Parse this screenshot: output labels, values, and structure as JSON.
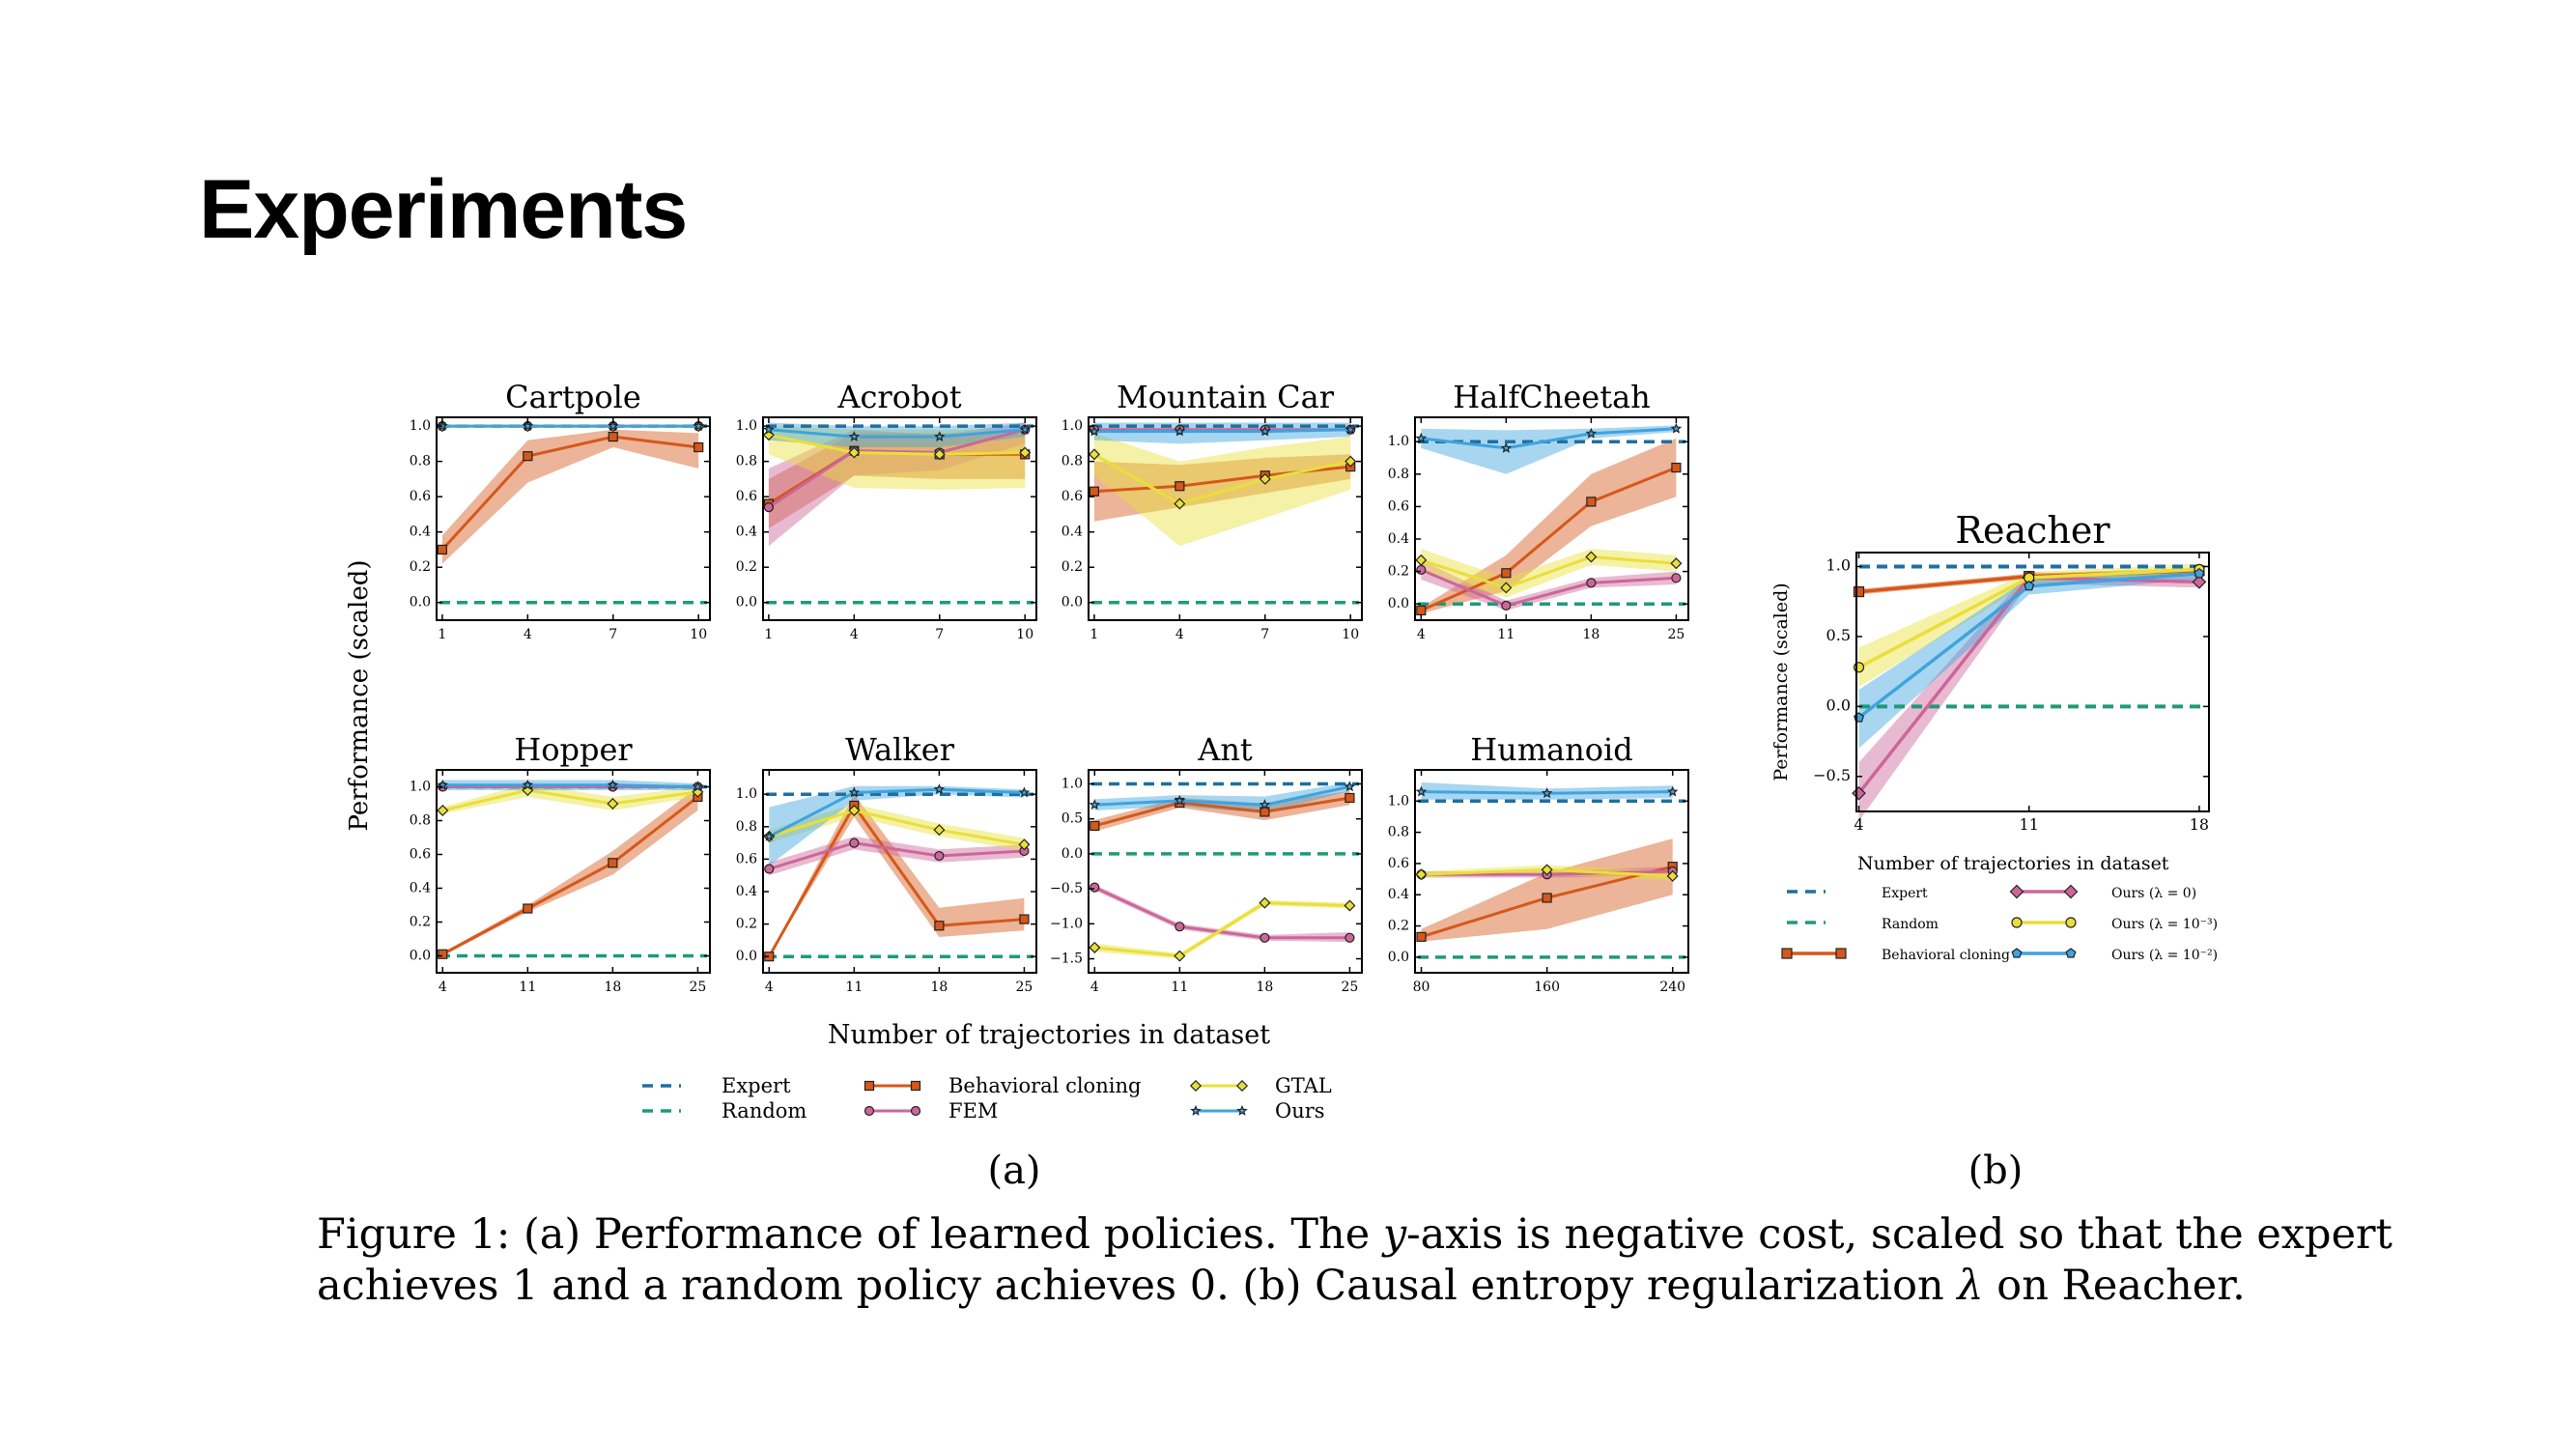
{
  "slide": {
    "title": "Experiments"
  },
  "colors": {
    "expert": "#1f6f9f",
    "random": "#1f9a7a",
    "bc": "#d5581a",
    "fem": "#cc6699",
    "gtal": "#e9df3a",
    "ours": "#3fa3dd"
  },
  "figure": {
    "panel_a_label": "(a)",
    "panel_b_label": "(b)",
    "caption": [
      {
        "t": "Figure 1: (a) Performance of learned policies. The "
      },
      {
        "t": "y",
        "i": true
      },
      {
        "t": "-axis is negative cost, scaled so that the expert"
      }
    ],
    "caption_line2": [
      {
        "t": "achieves 1 and a random policy achieves 0. (b) Causal entropy regularization "
      },
      {
        "t": "λ",
        "i": true
      },
      {
        "t": " on Reacher."
      }
    ]
  },
  "panel_a": {
    "ylabel": "Performance (scaled)",
    "xlabel": "Number of trajectories in dataset",
    "legend": [
      {
        "label": "Expert",
        "key": "expert",
        "style": "dash"
      },
      {
        "label": "Random",
        "key": "random",
        "style": "dash"
      },
      {
        "label": "Behavioral cloning",
        "key": "bc",
        "style": "square"
      },
      {
        "label": "FEM",
        "key": "fem",
        "style": "circle"
      },
      {
        "label": "GTAL",
        "key": "gtal",
        "style": "diamond"
      },
      {
        "label": "Ours",
        "key": "ours",
        "style": "star"
      }
    ]
  },
  "panel_b": {
    "ylabel": "Performance (scaled)",
    "xlabel": "Number of trajectories in dataset",
    "legend": [
      {
        "label": "Expert",
        "key": "expert",
        "style": "dash"
      },
      {
        "label": "Random",
        "key": "random",
        "style": "dash"
      },
      {
        "label": "Behavioral cloning",
        "key": "bc",
        "style": "square"
      },
      {
        "label": "Ours (λ = 0)",
        "key": "fem",
        "style": "bdiamond"
      },
      {
        "label": "Ours (λ = 10⁻³)",
        "key": "gtal",
        "style": "circle"
      },
      {
        "label": "Ours (λ = 10⁻²)",
        "key": "ours",
        "style": "pentagon"
      }
    ]
  },
  "chart_data": [
    {
      "type": "line",
      "title": "Cartpole",
      "x": [
        1,
        4,
        7,
        10
      ],
      "xlim": [
        0.8,
        10.4
      ],
      "ylim": [
        -0.1,
        1.05
      ],
      "yticks": [
        0,
        0.2,
        0.4,
        0.6,
        0.8,
        1.0
      ],
      "series": [
        {
          "name": "Behavioral cloning",
          "values": [
            0.3,
            0.83,
            0.94,
            0.88
          ],
          "lower": [
            0.22,
            0.68,
            0.88,
            0.76
          ],
          "upper": [
            0.38,
            0.92,
            0.98,
            0.96
          ]
        },
        {
          "name": "FEM",
          "values": [
            1.0,
            1.0,
            1.0,
            1.0
          ]
        },
        {
          "name": "GTAL",
          "values": [
            1.0,
            1.0,
            1.0,
            1.0
          ]
        },
        {
          "name": "Ours",
          "values": [
            1.0,
            1.0,
            1.0,
            1.0
          ]
        }
      ]
    },
    {
      "type": "line",
      "title": "Acrobot",
      "x": [
        1,
        4,
        7,
        10
      ],
      "xlim": [
        0.8,
        10.4
      ],
      "ylim": [
        -0.1,
        1.05
      ],
      "yticks": [
        0,
        0.2,
        0.4,
        0.6,
        0.8,
        1.0
      ],
      "series": [
        {
          "name": "Behavioral cloning",
          "values": [
            0.56,
            0.86,
            0.84,
            0.84
          ],
          "lower": [
            0.42,
            0.72,
            0.7,
            0.7
          ],
          "upper": [
            0.7,
            0.96,
            0.96,
            0.96
          ]
        },
        {
          "name": "FEM",
          "values": [
            0.54,
            0.86,
            0.85,
            0.98
          ],
          "lower": [
            0.32,
            0.72,
            0.75,
            0.9
          ],
          "upper": [
            0.76,
            0.98,
            0.95,
            1.02
          ]
        },
        {
          "name": "GTAL",
          "values": [
            0.95,
            0.85,
            0.84,
            0.85
          ],
          "lower": [
            0.84,
            0.65,
            0.64,
            0.65
          ],
          "upper": [
            1.0,
            0.98,
            0.98,
            0.98
          ]
        },
        {
          "name": "Ours",
          "values": [
            0.98,
            0.94,
            0.94,
            0.98
          ],
          "lower": [
            0.92,
            0.88,
            0.88,
            0.94
          ],
          "upper": [
            1.02,
            1.0,
            1.0,
            1.02
          ]
        }
      ]
    },
    {
      "type": "line",
      "title": "Mountain Car",
      "x": [
        1,
        4,
        7,
        10
      ],
      "xlim": [
        0.8,
        10.4
      ],
      "ylim": [
        -0.1,
        1.05
      ],
      "yticks": [
        0,
        0.2,
        0.4,
        0.6,
        0.8,
        1.0
      ],
      "series": [
        {
          "name": "Behavioral cloning",
          "values": [
            0.63,
            0.66,
            0.72,
            0.77
          ],
          "lower": [
            0.46,
            0.54,
            0.62,
            0.7
          ],
          "upper": [
            0.8,
            0.78,
            0.82,
            0.84
          ]
        },
        {
          "name": "FEM",
          "values": [
            0.98,
            0.98,
            0.98,
            0.98
          ]
        },
        {
          "name": "GTAL",
          "values": [
            0.84,
            0.56,
            0.7,
            0.8
          ],
          "lower": [
            0.72,
            0.32,
            0.48,
            0.64
          ],
          "upper": [
            0.96,
            0.8,
            0.88,
            0.94
          ]
        },
        {
          "name": "Ours",
          "values": [
            0.97,
            0.97,
            0.97,
            0.98
          ],
          "lower": [
            0.92,
            0.9,
            0.92,
            0.94
          ],
          "upper": [
            1.02,
            1.02,
            1.02,
            1.02
          ]
        }
      ]
    },
    {
      "type": "line",
      "title": "HalfCheetah",
      "x": [
        4,
        11,
        18,
        25
      ],
      "xlim": [
        3.5,
        26
      ],
      "ylim": [
        -0.1,
        1.15
      ],
      "yticks": [
        0,
        0.2,
        0.4,
        0.6,
        0.8,
        1.0
      ],
      "series": [
        {
          "name": "Behavioral cloning",
          "values": [
            -0.04,
            0.19,
            0.63,
            0.84
          ],
          "lower": [
            -0.06,
            0.08,
            0.48,
            0.66
          ],
          "upper": [
            -0.02,
            0.3,
            0.8,
            1.02
          ]
        },
        {
          "name": "FEM",
          "values": [
            0.21,
            -0.01,
            0.13,
            0.16
          ],
          "lower": [
            0.15,
            -0.04,
            0.1,
            0.12
          ],
          "upper": [
            0.27,
            0.02,
            0.16,
            0.2
          ]
        },
        {
          "name": "GTAL",
          "values": [
            0.27,
            0.1,
            0.29,
            0.25
          ],
          "lower": [
            0.2,
            0.04,
            0.24,
            0.2
          ],
          "upper": [
            0.34,
            0.16,
            0.34,
            0.3
          ]
        },
        {
          "name": "Ours",
          "values": [
            1.02,
            0.96,
            1.05,
            1.08
          ],
          "lower": [
            0.96,
            0.8,
            1.02,
            1.06
          ],
          "upper": [
            1.08,
            1.07,
            1.08,
            1.1
          ]
        }
      ]
    },
    {
      "type": "line",
      "title": "Hopper",
      "x": [
        4,
        11,
        18,
        25
      ],
      "xlim": [
        3.5,
        26
      ],
      "ylim": [
        -0.1,
        1.1
      ],
      "yticks": [
        0,
        0.2,
        0.4,
        0.6,
        0.8,
        1.0
      ],
      "series": [
        {
          "name": "Behavioral cloning",
          "values": [
            0.01,
            0.28,
            0.55,
            0.94
          ],
          "lower": [
            0.0,
            0.26,
            0.48,
            0.86
          ],
          "upper": [
            0.02,
            0.3,
            0.62,
            1.0
          ]
        },
        {
          "name": "FEM",
          "values": [
            1.0,
            1.0,
            1.0,
            1.0
          ]
        },
        {
          "name": "GTAL",
          "values": [
            0.86,
            0.98,
            0.9,
            0.97
          ],
          "lower": [
            0.84,
            0.94,
            0.86,
            0.94
          ],
          "upper": [
            0.88,
            1.02,
            0.94,
            1.0
          ]
        },
        {
          "name": "Ours",
          "values": [
            1.01,
            1.01,
            1.01,
            1.0
          ],
          "lower": [
            0.98,
            0.98,
            0.98,
            0.98
          ],
          "upper": [
            1.04,
            1.04,
            1.04,
            1.02
          ]
        }
      ]
    },
    {
      "type": "line",
      "title": "Walker",
      "x": [
        4,
        11,
        18,
        25
      ],
      "xlim": [
        3.5,
        26
      ],
      "ylim": [
        -0.1,
        1.15
      ],
      "yticks": [
        0,
        0.2,
        0.4,
        0.6,
        0.8,
        1.0
      ],
      "series": [
        {
          "name": "Behavioral cloning",
          "values": [
            0.0,
            0.93,
            0.19,
            0.23
          ],
          "lower": [
            0.0,
            0.86,
            0.12,
            0.16
          ],
          "upper": [
            0.0,
            1.0,
            0.3,
            0.36
          ]
        },
        {
          "name": "FEM",
          "values": [
            0.54,
            0.7,
            0.62,
            0.65
          ],
          "lower": [
            0.5,
            0.66,
            0.58,
            0.61
          ],
          "upper": [
            0.58,
            0.74,
            0.66,
            0.69
          ]
        },
        {
          "name": "GTAL",
          "values": [
            0.74,
            0.9,
            0.78,
            0.69
          ],
          "lower": [
            0.7,
            0.86,
            0.74,
            0.65
          ],
          "upper": [
            0.78,
            0.94,
            0.82,
            0.73
          ]
        },
        {
          "name": "Ours",
          "values": [
            0.74,
            1.01,
            1.03,
            1.01
          ],
          "lower": [
            0.56,
            0.96,
            1.0,
            0.98
          ],
          "upper": [
            0.92,
            1.05,
            1.05,
            1.03
          ]
        }
      ]
    },
    {
      "type": "line",
      "title": "Ant",
      "x": [
        4,
        11,
        18,
        25
      ],
      "xlim": [
        3.5,
        26
      ],
      "ylim": [
        -1.7,
        1.2
      ],
      "yticks": [
        -1.5,
        -1.0,
        -0.5,
        0.0,
        0.5,
        1.0
      ],
      "series": [
        {
          "name": "Behavioral cloning",
          "values": [
            0.4,
            0.73,
            0.6,
            0.8
          ],
          "lower": [
            0.32,
            0.66,
            0.48,
            0.7
          ],
          "upper": [
            0.48,
            0.8,
            0.72,
            0.9
          ]
        },
        {
          "name": "FEM",
          "values": [
            -0.48,
            -1.04,
            -1.2,
            -1.2
          ],
          "lower": [
            -0.52,
            -1.08,
            -1.24,
            -1.26
          ],
          "upper": [
            -0.44,
            -1.0,
            -1.16,
            -1.12
          ]
        },
        {
          "name": "GTAL",
          "values": [
            -1.34,
            -1.46,
            -0.7,
            -0.74
          ],
          "lower": [
            -1.4,
            -1.5,
            -0.74,
            -0.78
          ],
          "upper": [
            -1.28,
            -1.42,
            -0.66,
            -0.7
          ]
        },
        {
          "name": "Ours",
          "values": [
            0.7,
            0.76,
            0.7,
            0.96
          ],
          "lower": [
            0.62,
            0.68,
            0.58,
            0.9
          ],
          "upper": [
            0.78,
            0.84,
            0.82,
            1.02
          ]
        }
      ]
    },
    {
      "type": "line",
      "title": "Humanoid",
      "x": [
        80,
        160,
        240
      ],
      "xlim": [
        76,
        250
      ],
      "ylim": [
        -0.1,
        1.2
      ],
      "yticks": [
        0,
        0.2,
        0.4,
        0.6,
        0.8,
        1.0
      ],
      "series": [
        {
          "name": "Behavioral cloning",
          "values": [
            0.13,
            0.38,
            0.58
          ],
          "lower": [
            0.1,
            0.18,
            0.4
          ],
          "upper": [
            0.18,
            0.54,
            0.76
          ]
        },
        {
          "name": "FEM",
          "values": [
            0.53,
            0.53,
            0.55
          ],
          "lower": [
            0.51,
            0.51,
            0.52
          ],
          "upper": [
            0.55,
            0.55,
            0.58
          ]
        },
        {
          "name": "GTAL",
          "values": [
            0.53,
            0.56,
            0.52
          ],
          "lower": [
            0.51,
            0.53,
            0.49
          ],
          "upper": [
            0.55,
            0.59,
            0.55
          ]
        },
        {
          "name": "Ours",
          "values": [
            1.06,
            1.05,
            1.06
          ],
          "lower": [
            1.01,
            1.01,
            1.02
          ],
          "upper": [
            1.12,
            1.08,
            1.1
          ]
        }
      ]
    },
    {
      "type": "line",
      "title": "Reacher",
      "x": [
        4,
        11,
        18
      ],
      "xlim": [
        3.9,
        18.4
      ],
      "ylim": [
        -0.75,
        1.1
      ],
      "yticks": [
        -0.5,
        0.0,
        0.5,
        1.0
      ],
      "series": [
        {
          "name": "Behavioral cloning",
          "values": [
            0.82,
            0.93,
            0.97
          ],
          "lower": [
            0.8,
            0.91,
            0.95
          ],
          "upper": [
            0.84,
            0.95,
            0.99
          ]
        },
        {
          "name": "Ours (λ = 0)",
          "values": [
            -0.62,
            0.92,
            0.89
          ],
          "lower": [
            -0.82,
            0.88,
            0.85
          ],
          "upper": [
            -0.4,
            0.96,
            0.93
          ]
        },
        {
          "name": "Ours (λ = 10⁻³)",
          "values": [
            0.28,
            0.92,
            0.98
          ],
          "lower": [
            0.14,
            0.88,
            0.94
          ],
          "upper": [
            0.42,
            0.96,
            1.02
          ]
        },
        {
          "name": "Ours (λ = 10⁻²)",
          "values": [
            -0.08,
            0.86,
            0.95
          ],
          "lower": [
            -0.3,
            0.8,
            0.91
          ],
          "upper": [
            0.12,
            0.92,
            0.99
          ]
        }
      ]
    }
  ]
}
